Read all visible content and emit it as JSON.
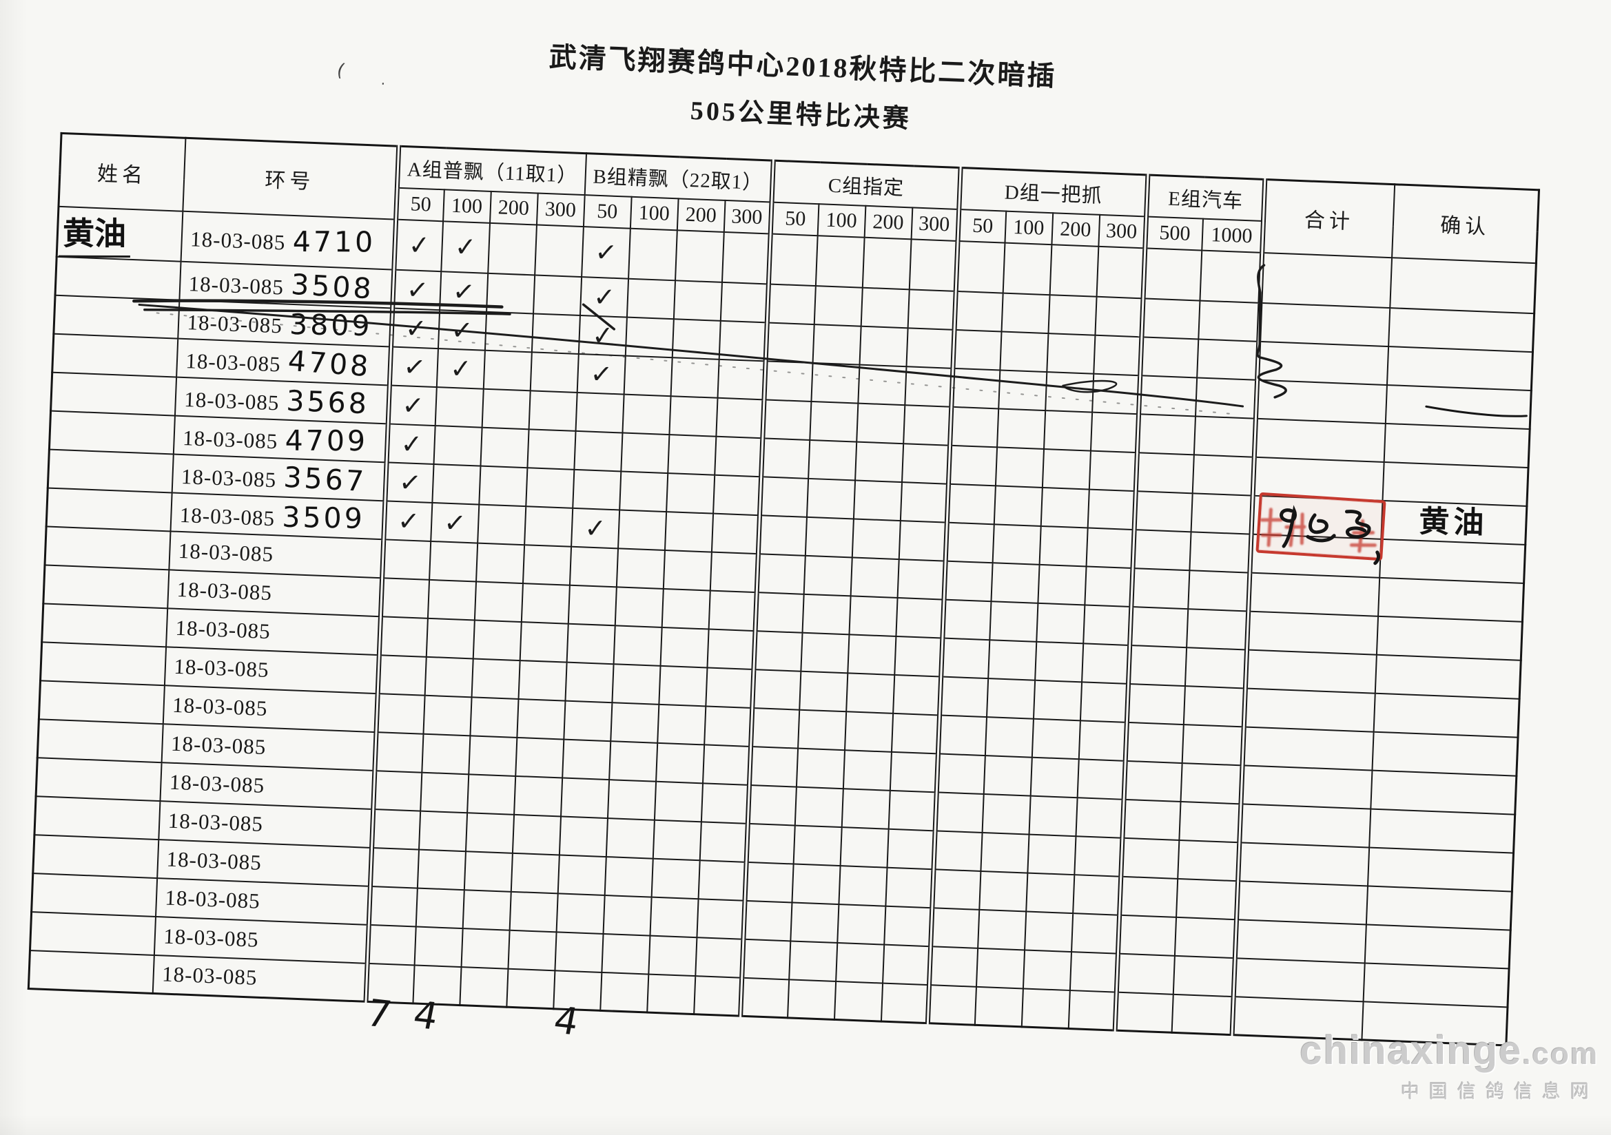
{
  "document": {
    "title": "武清飞翔赛鸽中心2018秋特比二次暗插",
    "subtitle": "505公里特比决赛"
  },
  "table": {
    "name_header": "姓名",
    "ring_header": "环号",
    "groups": [
      {
        "label": "A组普飘（11取1）",
        "subs": [
          "50",
          "100",
          "200",
          "300"
        ]
      },
      {
        "label": "B组精飘（22取1）",
        "subs": [
          "50",
          "100",
          "200",
          "300"
        ]
      },
      {
        "label": "C组指定",
        "subs": [
          "50",
          "100",
          "200",
          "300"
        ]
      },
      {
        "label": "D组一把抓",
        "subs": [
          "50",
          "100",
          "200",
          "300"
        ]
      },
      {
        "label": "E组汽车",
        "subs": [
          "500",
          "1000"
        ]
      }
    ],
    "total_header": "合计",
    "confirm_header": "确认",
    "ring_prefix": "18-03-085",
    "rows": [
      {
        "name": "黄油",
        "suffix": "4710",
        "checks": [
          0,
          1,
          4
        ],
        "struck": false
      },
      {
        "name": "",
        "suffix": "3508",
        "checks": [
          0,
          1,
          4
        ],
        "struck": false
      },
      {
        "name": "",
        "suffix": "3809",
        "checks": [
          0,
          1,
          4
        ],
        "struck": true
      },
      {
        "name": "",
        "suffix": "4708",
        "checks": [
          0,
          1,
          4
        ],
        "struck": false
      },
      {
        "name": "",
        "suffix": "3568",
        "checks": [
          0
        ],
        "struck": false
      },
      {
        "name": "",
        "suffix": "4709",
        "checks": [
          0
        ],
        "struck": false
      },
      {
        "name": "",
        "suffix": "3567",
        "checks": [
          0
        ],
        "struck": false
      },
      {
        "name": "",
        "suffix": "3509",
        "checks": [
          0,
          1,
          4
        ],
        "struck": false
      },
      {
        "name": "",
        "suffix": "",
        "checks": [],
        "struck": false
      },
      {
        "name": "",
        "suffix": "",
        "checks": [],
        "struck": false
      },
      {
        "name": "",
        "suffix": "",
        "checks": [],
        "struck": false
      },
      {
        "name": "",
        "suffix": "",
        "checks": [],
        "struck": false
      },
      {
        "name": "",
        "suffix": "",
        "checks": [],
        "struck": false
      },
      {
        "name": "",
        "suffix": "",
        "checks": [],
        "struck": false
      },
      {
        "name": "",
        "suffix": "",
        "checks": [],
        "struck": false
      },
      {
        "name": "",
        "suffix": "",
        "checks": [],
        "struck": false
      },
      {
        "name": "",
        "suffix": "",
        "checks": [],
        "struck": false
      },
      {
        "name": "",
        "suffix": "",
        "checks": [],
        "struck": false
      },
      {
        "name": "",
        "suffix": "",
        "checks": [],
        "struck": false
      },
      {
        "name": "",
        "suffix": "",
        "checks": [],
        "struck": false
      }
    ],
    "tallies": [
      {
        "col": 0,
        "value": "7"
      },
      {
        "col": 1,
        "value": "4"
      },
      {
        "col": 4,
        "value": "4"
      }
    ]
  },
  "handwriting": {
    "check_glyph": "✓",
    "confirm_signature": "黄油",
    "stamp_overlay_digit": "9"
  },
  "watermark": {
    "line1": "chinaxinge",
    "line1_suffix": ".com",
    "line2": "中国信鸽信息网"
  },
  "colors": {
    "stamp_red": "#c6392e",
    "ink": "#1a1a1a",
    "paper": "#f7f7f4"
  }
}
